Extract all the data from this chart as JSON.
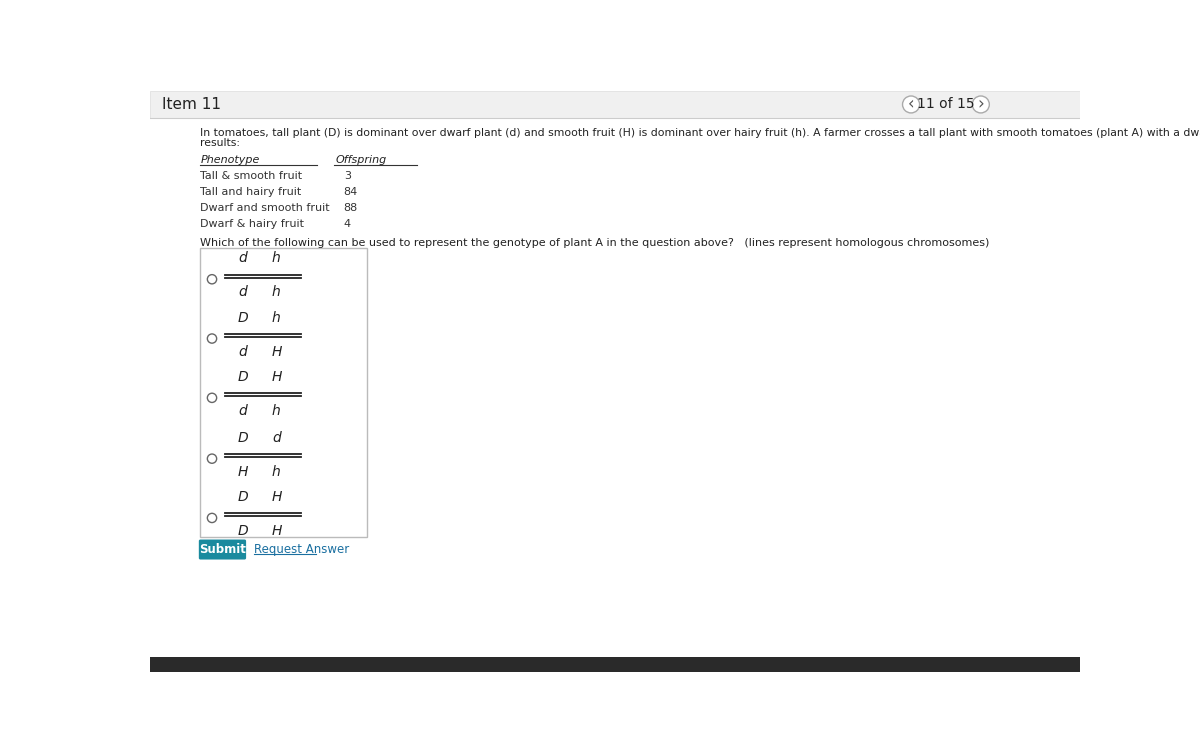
{
  "title": "Item 11",
  "page_info": "11 of 15",
  "background_color": "#ffffff",
  "body_line1": "In tomatoes, tall plant (D) is dominant over dwarf plant (d) and smooth fruit (H) is dominant over hairy fruit (h). A farmer crosses a tall plant with smooth tomatoes (plant A) with a dwarf and hairy fruit plant (plant B) and obtains the following",
  "body_line2": "results:",
  "table_headers": [
    "Phenotype",
    "Offspring"
  ],
  "table_rows": [
    [
      "Tall & smooth fruit",
      "3"
    ],
    [
      "Tall and hairy fruit",
      "84"
    ],
    [
      "Dwarf and smooth fruit",
      "88"
    ],
    [
      "Dwarf & hairy fruit",
      "4"
    ]
  ],
  "question": "Which of the following can be used to represent the genotype of plant A in the question above?   (lines represent homologous chromosomes)",
  "options": [
    {
      "top": [
        "d",
        "h"
      ],
      "bottom": [
        "d",
        "h"
      ]
    },
    {
      "top": [
        "D",
        "h"
      ],
      "bottom": [
        "d",
        "H"
      ]
    },
    {
      "top": [
        "D",
        "H"
      ],
      "bottom": [
        "d",
        "h"
      ]
    },
    {
      "top": [
        "D",
        "d"
      ],
      "bottom": [
        "H",
        "h"
      ]
    },
    {
      "top": [
        "D",
        "H"
      ],
      "bottom": [
        "D",
        "H"
      ]
    }
  ],
  "submit_btn_color": "#1a8a9e",
  "submit_btn_text": "Submit",
  "request_answer_text": "Request Answer",
  "header_bg": "#f0f0f0",
  "header_border": "#dddddd",
  "bottom_bar_color": "#2a2a2a"
}
